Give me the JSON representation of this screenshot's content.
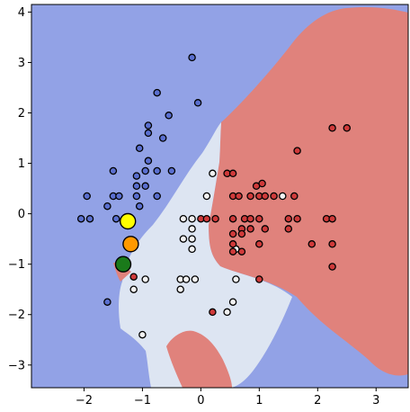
{
  "chart_data": {
    "type": "scatter",
    "title": "",
    "xlabel": "",
    "ylabel": "",
    "xlim": [
      -2.9,
      3.55
    ],
    "ylim": [
      -3.45,
      4.15
    ],
    "xticks": [
      -2,
      -1,
      0,
      1,
      2,
      3
    ],
    "xtick_labels": [
      "−2",
      "−1",
      "0",
      "1",
      "2",
      "3"
    ],
    "yticks": [
      -3,
      -2,
      -1,
      0,
      1,
      2,
      3,
      4
    ],
    "ytick_labels": [
      "−3",
      "−2",
      "−1",
      "0",
      "1",
      "2",
      "3",
      "4"
    ],
    "grid": false,
    "legend": "none",
    "colors": {
      "region_blue": "#92a2e6",
      "region_white": "#dde5f2",
      "region_red": "#e0827c",
      "point_blue": "#5a6fcf",
      "point_white": "#f2f2f2",
      "point_red": "#cf3a3a",
      "highlight_yellow": "#ffff00",
      "highlight_orange": "#ff9900",
      "highlight_green": "#1a7a1a"
    },
    "decision_regions": [
      {
        "class": "blue",
        "color_key": "region_blue",
        "role": "background"
      },
      {
        "class": "red",
        "color_key": "region_red",
        "role": "upper-right region"
      },
      {
        "class": "white",
        "color_key": "region_white",
        "role": "center region"
      },
      {
        "class": "red",
        "color_key": "region_red",
        "role": "lower pocket"
      },
      {
        "class": "red",
        "color_key": "region_red",
        "role": "left sliver"
      }
    ],
    "series": [
      {
        "class": "blue",
        "color_key": "point_blue",
        "points": [
          [
            -0.15,
            3.1
          ],
          [
            -0.75,
            2.4
          ],
          [
            -0.55,
            1.95
          ],
          [
            -0.05,
            2.2
          ],
          [
            -0.9,
            1.75
          ],
          [
            -0.9,
            1.6
          ],
          [
            -1.05,
            1.3
          ],
          [
            -0.65,
            1.5
          ],
          [
            -0.9,
            1.05
          ],
          [
            -0.75,
            0.85
          ],
          [
            -1.5,
            0.85
          ],
          [
            -0.95,
            0.85
          ],
          [
            -1.1,
            0.75
          ],
          [
            -0.5,
            0.85
          ],
          [
            -1.1,
            0.55
          ],
          [
            -0.95,
            0.55
          ],
          [
            -1.95,
            0.35
          ],
          [
            -1.5,
            0.35
          ],
          [
            -1.4,
            0.35
          ],
          [
            -1.1,
            0.35
          ],
          [
            -0.75,
            0.35
          ],
          [
            -1.6,
            0.15
          ],
          [
            -1.05,
            0.15
          ],
          [
            -2.05,
            -0.1
          ],
          [
            -1.9,
            -0.1
          ],
          [
            -1.45,
            -0.1
          ],
          [
            -1.6,
            -1.75
          ]
        ]
      },
      {
        "class": "white",
        "color_key": "point_white",
        "points": [
          [
            0.2,
            0.8
          ],
          [
            0.1,
            0.35
          ],
          [
            1.4,
            0.35
          ],
          [
            -0.3,
            -0.1
          ],
          [
            -0.15,
            -0.1
          ],
          [
            -0.15,
            -0.3
          ],
          [
            -0.3,
            -0.5
          ],
          [
            -0.15,
            -0.5
          ],
          [
            -0.15,
            -0.7
          ],
          [
            0.6,
            -0.7
          ],
          [
            -0.35,
            -1.3
          ],
          [
            -0.25,
            -1.3
          ],
          [
            -0.1,
            -1.3
          ],
          [
            0.6,
            -1.3
          ],
          [
            -0.95,
            -1.3
          ],
          [
            -0.35,
            -1.5
          ],
          [
            -1.15,
            -1.5
          ],
          [
            0.55,
            -1.75
          ],
          [
            0.45,
            -1.95
          ],
          [
            -1.0,
            -2.4
          ]
        ]
      },
      {
        "class": "red",
        "color_key": "point_red",
        "points": [
          [
            2.25,
            1.7
          ],
          [
            2.5,
            1.7
          ],
          [
            1.65,
            1.25
          ],
          [
            0.45,
            0.8
          ],
          [
            0.55,
            0.8
          ],
          [
            1.05,
            0.6
          ],
          [
            0.95,
            0.55
          ],
          [
            0.55,
            0.35
          ],
          [
            0.65,
            0.35
          ],
          [
            0.85,
            0.35
          ],
          [
            1.0,
            0.35
          ],
          [
            1.1,
            0.35
          ],
          [
            1.25,
            0.35
          ],
          [
            1.6,
            0.35
          ],
          [
            0.0,
            -0.1
          ],
          [
            0.1,
            -0.1
          ],
          [
            0.25,
            -0.1
          ],
          [
            0.55,
            -0.1
          ],
          [
            0.75,
            -0.1
          ],
          [
            0.85,
            -0.1
          ],
          [
            1.0,
            -0.1
          ],
          [
            1.5,
            -0.1
          ],
          [
            1.65,
            -0.1
          ],
          [
            2.15,
            -0.1
          ],
          [
            2.25,
            -0.1
          ],
          [
            0.7,
            -0.3
          ],
          [
            0.85,
            -0.3
          ],
          [
            1.1,
            -0.3
          ],
          [
            1.5,
            -0.3
          ],
          [
            0.55,
            -0.4
          ],
          [
            0.7,
            -0.4
          ],
          [
            0.55,
            -0.6
          ],
          [
            0.55,
            -0.75
          ],
          [
            0.7,
            -0.75
          ],
          [
            1.0,
            -0.6
          ],
          [
            1.9,
            -0.6
          ],
          [
            2.25,
            -0.6
          ],
          [
            2.25,
            -1.05
          ],
          [
            1.0,
            -1.3
          ],
          [
            -1.15,
            -1.25
          ],
          [
            0.2,
            -1.95
          ]
        ]
      }
    ],
    "highlighted_points": [
      {
        "x": -1.25,
        "y": -0.15,
        "color_key": "highlight_yellow"
      },
      {
        "x": -1.2,
        "y": -0.6,
        "color_key": "highlight_orange"
      },
      {
        "x": -1.33,
        "y": -1.0,
        "color_key": "highlight_green"
      }
    ]
  }
}
